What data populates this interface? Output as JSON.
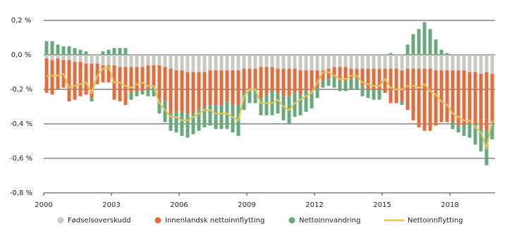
{
  "chart_data": {
    "type": "bar",
    "x": [
      2000,
      2000.25,
      2000.5,
      2000.75,
      2001,
      2001.25,
      2001.5,
      2001.75,
      2002,
      2002.25,
      2002.5,
      2002.75,
      2003,
      2003.25,
      2003.5,
      2003.75,
      2004,
      2004.25,
      2004.5,
      2004.75,
      2005,
      2005.25,
      2005.5,
      2005.75,
      2006,
      2006.25,
      2006.5,
      2006.75,
      2007,
      2007.25,
      2007.5,
      2007.75,
      2008,
      2008.25,
      2008.5,
      2008.75,
      2009,
      2009.25,
      2009.5,
      2009.75,
      2010,
      2010.25,
      2010.5,
      2010.75,
      2011,
      2011.25,
      2011.5,
      2011.75,
      2012,
      2012.25,
      2012.5,
      2012.75,
      2013,
      2013.25,
      2013.5,
      2013.75,
      2014,
      2014.25,
      2014.5,
      2014.75,
      2015,
      2015.25,
      2015.5,
      2015.75,
      2016,
      2016.25,
      2016.5,
      2016.75,
      2017,
      2017.25,
      2017.5,
      2017.75,
      2018,
      2018.25,
      2018.5,
      2018.75,
      2019,
      2019.25,
      2019.5,
      2019.75
    ],
    "series": [
      {
        "name": "Fødselsoverskudd",
        "type": "bar",
        "color": "#cacac2",
        "values": [
          -0.02,
          -0.03,
          -0.02,
          -0.03,
          -0.03,
          -0.04,
          -0.04,
          -0.05,
          -0.05,
          -0.05,
          -0.06,
          -0.06,
          -0.06,
          -0.07,
          -0.07,
          -0.07,
          -0.07,
          -0.07,
          -0.06,
          -0.06,
          -0.06,
          -0.07,
          -0.08,
          -0.09,
          -0.09,
          -0.1,
          -0.1,
          -0.1,
          -0.1,
          -0.09,
          -0.09,
          -0.09,
          -0.09,
          -0.09,
          -0.09,
          -0.08,
          -0.08,
          -0.08,
          -0.07,
          -0.07,
          -0.07,
          -0.08,
          -0.08,
          -0.08,
          -0.08,
          -0.09,
          -0.09,
          -0.09,
          -0.09,
          -0.09,
          -0.08,
          -0.07,
          -0.07,
          -0.07,
          -0.08,
          -0.08,
          -0.08,
          -0.08,
          -0.08,
          -0.08,
          -0.08,
          -0.08,
          -0.08,
          -0.09,
          -0.08,
          -0.08,
          -0.08,
          -0.08,
          -0.08,
          -0.09,
          -0.09,
          -0.09,
          -0.09,
          -0.09,
          -0.09,
          -0.1,
          -0.1,
          -0.11,
          -0.1,
          -0.11
        ]
      },
      {
        "name": "Innenlandsk nettoinnflytting",
        "type": "bar",
        "color": "#e06d3b",
        "values": [
          -0.2,
          -0.2,
          -0.18,
          -0.16,
          -0.24,
          -0.22,
          -0.2,
          -0.18,
          -0.2,
          -0.12,
          -0.1,
          -0.1,
          -0.2,
          -0.2,
          -0.22,
          -0.15,
          -0.14,
          -0.14,
          -0.14,
          -0.12,
          -0.2,
          -0.2,
          -0.26,
          -0.24,
          -0.24,
          -0.24,
          -0.24,
          -0.22,
          -0.2,
          -0.2,
          -0.2,
          -0.2,
          -0.18,
          -0.2,
          -0.2,
          -0.14,
          -0.12,
          -0.12,
          -0.18,
          -0.16,
          -0.14,
          -0.14,
          -0.16,
          -0.16,
          -0.14,
          -0.14,
          -0.12,
          -0.12,
          -0.1,
          -0.06,
          -0.06,
          -0.06,
          -0.08,
          -0.08,
          -0.06,
          -0.06,
          -0.1,
          -0.12,
          -0.12,
          -0.12,
          -0.14,
          -0.2,
          -0.2,
          -0.18,
          -0.24,
          -0.3,
          -0.34,
          -0.36,
          -0.36,
          -0.32,
          -0.3,
          -0.3,
          -0.3,
          -0.32,
          -0.32,
          -0.3,
          -0.3,
          -0.32,
          -0.34,
          -0.28
        ]
      },
      {
        "name": "Nettoinnvandring",
        "type": "bar",
        "color": "#68a87c",
        "values": [
          0.08,
          0.08,
          0.06,
          0.05,
          0.05,
          0.04,
          0.03,
          0.02,
          -0.02,
          0,
          0.02,
          0.03,
          0.04,
          0.04,
          0.04,
          -0.04,
          -0.03,
          -0.02,
          -0.04,
          -0.06,
          -0.08,
          -0.12,
          -0.1,
          -0.12,
          -0.14,
          -0.14,
          -0.12,
          -0.12,
          -0.12,
          -0.12,
          -0.14,
          -0.14,
          -0.16,
          -0.16,
          -0.18,
          -0.1,
          -0.08,
          -0.08,
          -0.1,
          -0.12,
          -0.14,
          -0.12,
          -0.14,
          -0.16,
          -0.14,
          -0.12,
          -0.12,
          -0.1,
          -0.06,
          -0.04,
          -0.04,
          -0.06,
          -0.06,
          -0.06,
          -0.06,
          -0.06,
          -0.06,
          -0.05,
          -0.06,
          -0.06,
          0,
          0.01,
          0,
          -0.02,
          0.06,
          0.12,
          0.15,
          0.19,
          0.15,
          0.09,
          0.03,
          0.01,
          -0.04,
          -0.04,
          -0.06,
          -0.08,
          -0.12,
          -0.13,
          -0.2,
          -0.1
        ]
      },
      {
        "name": "Nettoinnflytting",
        "type": "line",
        "color": "#e3c45a",
        "values": [
          -0.12,
          -0.12,
          -0.12,
          -0.11,
          -0.19,
          -0.18,
          -0.17,
          -0.16,
          -0.22,
          -0.12,
          -0.08,
          -0.07,
          -0.16,
          -0.16,
          -0.18,
          -0.19,
          -0.17,
          -0.16,
          -0.18,
          -0.18,
          -0.28,
          -0.32,
          -0.36,
          -0.36,
          -0.38,
          -0.38,
          -0.36,
          -0.34,
          -0.32,
          -0.32,
          -0.34,
          -0.34,
          -0.34,
          -0.36,
          -0.38,
          -0.24,
          -0.2,
          -0.2,
          -0.28,
          -0.28,
          -0.28,
          -0.26,
          -0.3,
          -0.32,
          -0.28,
          -0.26,
          -0.24,
          -0.22,
          -0.16,
          -0.1,
          -0.1,
          -0.12,
          -0.14,
          -0.14,
          -0.12,
          -0.12,
          -0.16,
          -0.17,
          -0.18,
          -0.18,
          -0.14,
          -0.19,
          -0.2,
          -0.2,
          -0.18,
          -0.18,
          -0.19,
          -0.17,
          -0.21,
          -0.23,
          -0.27,
          -0.29,
          -0.34,
          -0.36,
          -0.38,
          -0.38,
          -0.42,
          -0.45,
          -0.54,
          -0.38
        ]
      }
    ],
    "xlim": [
      2000,
      2020
    ],
    "xticks": [
      2000,
      2003,
      2006,
      2009,
      2012,
      2015,
      2018
    ],
    "ylim": [
      -0.8,
      0.2
    ],
    "yticks": [
      {
        "value": -0.8,
        "label": "-0,8 %"
      },
      {
        "value": -0.6,
        "label": "-0,6 %"
      },
      {
        "value": -0.4,
        "label": "-0,4 %"
      },
      {
        "value": -0.2,
        "label": "-0,2 %"
      },
      {
        "value": 0,
        "label": "0,0 %"
      },
      {
        "value": 0.2,
        "label": "0,2 %"
      }
    ],
    "grid": true,
    "legend": "bottom"
  }
}
